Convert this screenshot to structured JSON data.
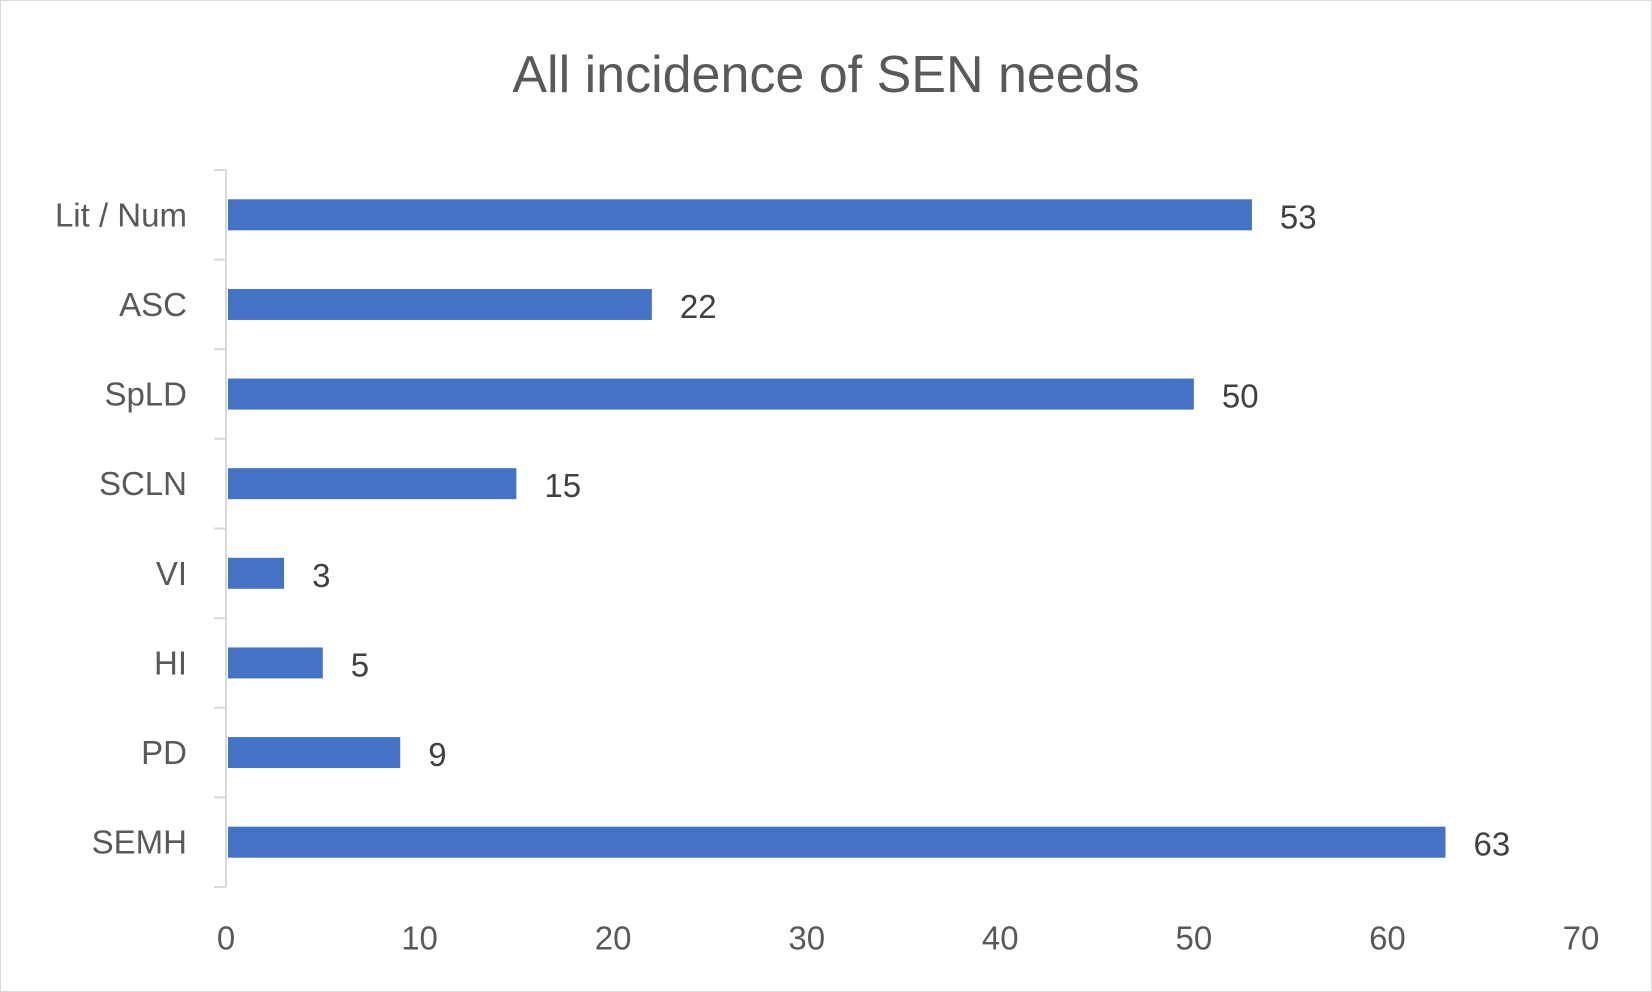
{
  "chart_data": {
    "type": "bar",
    "orientation": "horizontal",
    "title": "All incidence of SEN needs",
    "categories": [
      "Lit / Num",
      "ASC",
      "SpLD",
      "SCLN",
      "VI",
      "HI",
      "PD",
      "SEMH"
    ],
    "values": [
      53,
      22,
      50,
      15,
      3,
      5,
      9,
      63
    ],
    "xlim": [
      0,
      70
    ],
    "x_ticks": [
      0,
      10,
      20,
      30,
      40,
      50,
      60,
      70
    ],
    "xlabel": "",
    "ylabel": "",
    "grid": false,
    "legend": "none",
    "data_labels": true,
    "bar_color": "#4472c4"
  },
  "colors": {
    "bar": "#4472c4",
    "axis_line": "#d9d9d9",
    "tick_text": "#595959",
    "label_text": "#404040",
    "title_text": "#595959"
  }
}
